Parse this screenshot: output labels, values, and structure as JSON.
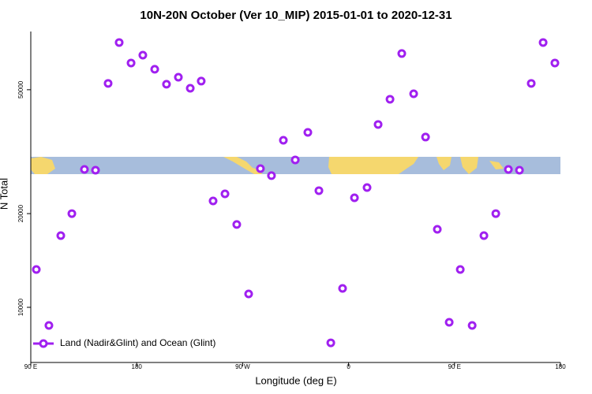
{
  "chart_data": {
    "type": "scatter",
    "title": "10N-20N October (Ver 10_MIP)   2015-01-01 to 2020-12-31",
    "x_label": "Longitude (deg E)",
    "y_label": "N Total",
    "yscale": "log",
    "legend": "bottom left",
    "xlim": [
      90,
      540
    ],
    "xticks": [
      {
        "value": 90,
        "label": "90 E"
      },
      {
        "value": 180,
        "label": "180"
      },
      {
        "value": 270,
        "label": "90 W"
      },
      {
        "value": 360,
        "label": "0"
      },
      {
        "value": 450,
        "label": "90 E"
      },
      {
        "value": 540,
        "label": "180"
      }
    ],
    "ylim": [
      6650,
      76900
    ],
    "yticks": [
      10000,
      20000,
      50000
    ],
    "series": [
      {
        "name": "Land (Nadir&Glint) and Ocean (Glint)",
        "color": "#a020f0",
        "x": [
          94.7,
          105.4,
          115.5,
          124.9,
          135.6,
          145.0,
          155.7,
          165.1,
          175.2,
          185.2,
          195.3,
          205.3,
          215.4,
          225.5,
          234.8,
          244.9,
          255.0,
          265.0,
          275.1,
          285.1,
          294.5,
          304.6,
          314.7,
          325.4,
          334.8,
          344.9,
          354.9,
          365.0,
          375.7,
          385.1,
          395.2,
          405.2,
          415.3,
          425.4,
          435.4,
          445.5,
          454.9,
          465.0,
          475.0,
          485.1,
          495.8,
          505.2,
          515.2,
          525.3,
          535.3
        ],
        "values": [
          13230,
          8745,
          17000,
          20000,
          27730,
          27570,
          52400,
          70900,
          60930,
          64570,
          58160,
          52070,
          54850,
          50550,
          53290,
          21970,
          23150,
          18450,
          11040,
          27900,
          26480,
          34410,
          29750,
          36480,
          23700,
          7690,
          11500,
          22480,
          24250,
          38670,
          46600,
          65350,
          48530,
          35230,
          17810,
          8950,
          13230,
          8745,
          17000,
          20000,
          27730,
          27570,
          52400,
          70900,
          60930
        ]
      }
    ]
  }
}
